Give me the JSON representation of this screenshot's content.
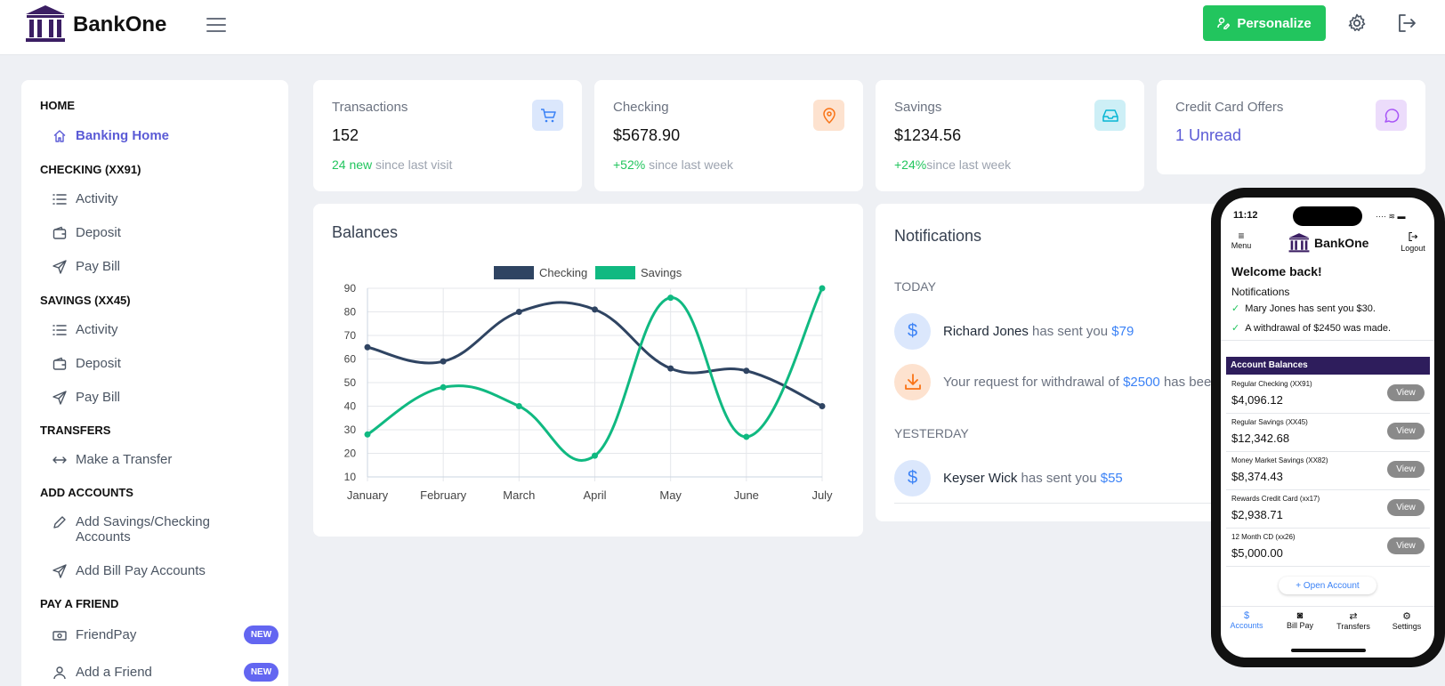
{
  "header": {
    "brand": "BankOne",
    "personalize_label": "Personalize"
  },
  "sidebar": {
    "sections": [
      {
        "title": "HOME",
        "items": [
          {
            "label": "Banking Home",
            "icon": "home-icon",
            "active": true
          }
        ]
      },
      {
        "title": "CHECKING (XX91)",
        "items": [
          {
            "label": "Activity",
            "icon": "list-icon"
          },
          {
            "label": "Deposit",
            "icon": "wallet-icon"
          },
          {
            "label": "Pay Bill",
            "icon": "send-icon"
          }
        ]
      },
      {
        "title": "SAVINGS (XX45)",
        "items": [
          {
            "label": "Activity",
            "icon": "list-icon"
          },
          {
            "label": "Deposit",
            "icon": "wallet-icon"
          },
          {
            "label": "Pay Bill",
            "icon": "send-icon"
          }
        ]
      },
      {
        "title": "TRANSFERS",
        "items": [
          {
            "label": "Make a Transfer",
            "icon": "arrows-icon"
          }
        ]
      },
      {
        "title": "ADD ACCOUNTS",
        "items": [
          {
            "label": "Add Savings/Checking Accounts",
            "icon": "pencil-icon"
          },
          {
            "label": "Add Bill Pay Accounts",
            "icon": "send-icon"
          }
        ]
      },
      {
        "title": "PAY A FRIEND",
        "items": [
          {
            "label": "FriendPay",
            "icon": "cash-icon",
            "badge": "NEW"
          },
          {
            "label": "Add a Friend",
            "icon": "user-icon",
            "badge": "NEW"
          }
        ]
      }
    ]
  },
  "stats": [
    {
      "label": "Transactions",
      "value": "152",
      "delta": "24 new",
      "delta_suffix": " since last visit",
      "icon": "cart-icon",
      "icon_bg": "#dbe7fc",
      "icon_color": "#3b82f6"
    },
    {
      "label": "Checking",
      "value": "$5678.90",
      "delta": "+52%",
      "delta_suffix": " since last week",
      "icon": "map-pin-icon",
      "icon_bg": "#fde2cf",
      "icon_color": "#f97316"
    },
    {
      "label": "Savings",
      "value": "$1234.56",
      "delta": "+24%",
      "delta_suffix": "since last week",
      "icon": "inbox-icon",
      "icon_bg": "#cdeff6",
      "icon_color": "#06b6d4"
    },
    {
      "label": "Credit Card Offers",
      "value": "1 Unread",
      "icon": "chat-icon",
      "icon_bg": "#ecdcfb",
      "icon_color": "#a855f7"
    }
  ],
  "balances": {
    "title": "Balances"
  },
  "chart_data": {
    "type": "line",
    "categories": [
      "January",
      "February",
      "March",
      "April",
      "May",
      "June",
      "July"
    ],
    "series": [
      {
        "name": "Checking",
        "color": "#2f4462",
        "values": [
          65,
          59,
          80,
          81,
          56,
          55,
          40
        ]
      },
      {
        "name": "Savings",
        "color": "#10b981",
        "values": [
          28,
          48,
          40,
          19,
          86,
          27,
          90
        ]
      }
    ],
    "y_ticks": [
      10,
      20,
      30,
      40,
      50,
      60,
      70,
      80,
      90
    ],
    "ylim": [
      10,
      90
    ],
    "legend": "top-center",
    "grid": true
  },
  "notifications": {
    "title": "Notifications",
    "today_label": "TODAY",
    "yesterday_label": "YESTERDAY",
    "today": [
      {
        "who": "Richard Jones",
        "text": " has sent you ",
        "amount": "$79",
        "icon": "dollar-icon"
      },
      {
        "prefix": "Your request for withdrawal of ",
        "amount": "$2500",
        "text": " has bee",
        "icon": "download-icon"
      }
    ],
    "yesterday": [
      {
        "who": "Keyser Wick",
        "text": " has sent you ",
        "amount": "$55",
        "icon": "dollar-icon"
      }
    ]
  },
  "phone": {
    "time": "11:12",
    "menu_label": "Menu",
    "logout_label": "Logout",
    "brand": "BankOne",
    "welcome": "Welcome back!",
    "notifications_title": "Notifications",
    "notifications": [
      "Mary Jones has sent you $30.",
      "A withdrawal of $2450 was made."
    ],
    "accounts_title": "Account Balances",
    "accounts": [
      {
        "name": "Regular Checking (XX91)",
        "balance": "$4,096.12"
      },
      {
        "name": "Regular Savings (XX45)",
        "balance": "$12,342.68"
      },
      {
        "name": "Money Market Savings (XX82)",
        "balance": "$8,374.43"
      },
      {
        "name": "Rewards Credit Card (xx17)",
        "balance": "$2,938.71"
      },
      {
        "name": "12 Month CD (xx26)",
        "balance": "$5,000.00"
      }
    ],
    "view_label": "View",
    "open_account": "+ Open Account",
    "tabs": [
      {
        "label": "Accounts",
        "glyph": "$",
        "active": true
      },
      {
        "label": "Bill Pay",
        "glyph": "◙"
      },
      {
        "label": "Transfers",
        "glyph": "⇄"
      },
      {
        "label": "Settings",
        "glyph": "⚙"
      }
    ]
  }
}
